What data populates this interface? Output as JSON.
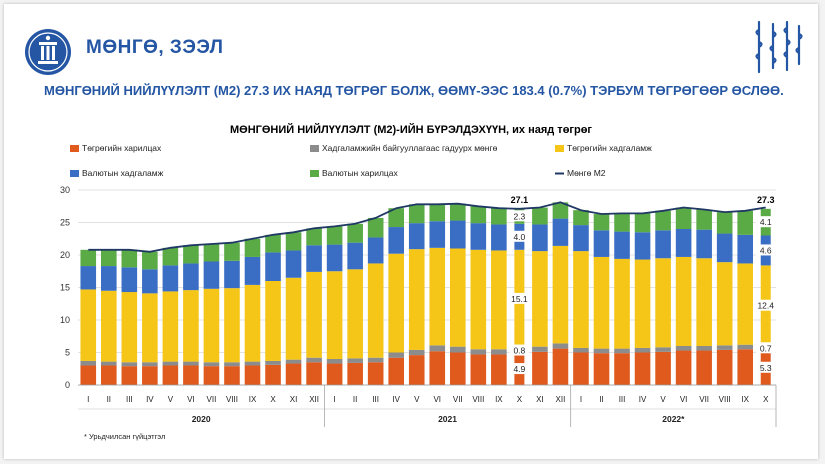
{
  "header": {
    "section_title": "МӨНГӨ, ЗЭЭЛ",
    "headline": "МӨНГӨНИЙ НИЙЛҮҮЛЭЛТ (М2) 27.3 ИХ НАЯД ТӨГРӨГ БОЛЖ, ӨӨМҮ-ЭЭС 183.4 (0.7%) ТЭРБУМ ТӨГРӨГӨӨР ӨСЛӨӨ."
  },
  "footnote": "* Урьдчилсан гүйцэтгэл",
  "colors": {
    "brand": "#2456a4",
    "currency": "#e05a1e",
    "non_bank": "#8c8c8c",
    "mnt_deposit": "#f5c518",
    "fx_deposit": "#3a6ec4",
    "fx_current": "#5aaa46",
    "m2_line": "#1f3864"
  },
  "chart_data": {
    "type": "bar",
    "stacked": true,
    "title": "МӨНГӨНИЙ НИЙЛҮҮЛЭЛТ (М2)-ИЙН БҮРЭЛДЭХҮҮН, их наяд төгрөг",
    "ylim": [
      0,
      30
    ],
    "yticks": [
      0,
      5,
      10,
      15,
      20,
      25,
      30
    ],
    "grid": true,
    "legend_position": "top",
    "categories": [
      "I",
      "II",
      "III",
      "IV",
      "V",
      "VI",
      "VII",
      "VIII",
      "IX",
      "X",
      "XI",
      "XII",
      "I",
      "II",
      "III",
      "IV",
      "V",
      "VI",
      "VII",
      "VIII",
      "IX",
      "X",
      "XI",
      "XII",
      "I",
      "II",
      "III",
      "IV",
      "V",
      "VI",
      "VII",
      "VIII",
      "IX",
      "X"
    ],
    "years": [
      {
        "label": "2020",
        "start": 0,
        "end": 11
      },
      {
        "label": "2021",
        "start": 12,
        "end": 23
      },
      {
        "label": "2022*",
        "start": 24,
        "end": 33
      }
    ],
    "series": [
      {
        "name": "Төгрөгийн харилцах",
        "color": "#e05a1e",
        "values": [
          3.0,
          3.0,
          2.9,
          2.9,
          3.0,
          3.0,
          2.9,
          2.9,
          3.0,
          3.1,
          3.3,
          3.5,
          3.3,
          3.4,
          3.5,
          4.2,
          4.6,
          5.2,
          5.0,
          4.7,
          4.7,
          4.9,
          5.1,
          5.6,
          5.0,
          4.9,
          4.9,
          5.0,
          5.1,
          5.3,
          5.3,
          5.4,
          5.5,
          5.3
        ]
      },
      {
        "name": "Хадгаламжийн байгууллагаас гадуурх мөнгө",
        "color": "#8c8c8c",
        "values": [
          0.7,
          0.6,
          0.6,
          0.6,
          0.6,
          0.6,
          0.6,
          0.6,
          0.6,
          0.6,
          0.6,
          0.7,
          0.7,
          0.7,
          0.7,
          0.8,
          0.8,
          0.9,
          0.9,
          0.8,
          0.8,
          0.8,
          0.8,
          0.8,
          0.7,
          0.7,
          0.7,
          0.7,
          0.7,
          0.7,
          0.7,
          0.7,
          0.7,
          0.7
        ]
      },
      {
        "name": "Төгрөгийн хадгаламж",
        "color": "#f5c518",
        "values": [
          11.0,
          10.9,
          10.8,
          10.6,
          10.8,
          11.0,
          11.3,
          11.4,
          11.8,
          12.3,
          12.6,
          13.2,
          13.5,
          13.7,
          14.5,
          15.2,
          15.5,
          15.0,
          15.1,
          15.3,
          15.2,
          15.1,
          14.7,
          15.0,
          14.9,
          14.1,
          13.8,
          13.6,
          13.7,
          13.7,
          13.5,
          12.8,
          12.5,
          12.4
        ]
      },
      {
        "name": "Валютын хадгаламж",
        "color": "#3a6ec4",
        "values": [
          3.6,
          3.8,
          3.8,
          3.7,
          4.0,
          4.1,
          4.2,
          4.2,
          4.3,
          4.4,
          4.2,
          4.1,
          4.1,
          4.1,
          4.0,
          4.1,
          4.0,
          4.1,
          4.3,
          4.1,
          4.0,
          4.0,
          4.1,
          4.2,
          4.0,
          4.1,
          4.2,
          4.2,
          4.3,
          4.3,
          4.4,
          4.4,
          4.4,
          4.6
        ]
      },
      {
        "name": "Валютын харилцах",
        "color": "#5aaa46",
        "values": [
          2.5,
          2.5,
          2.7,
          2.7,
          2.7,
          2.8,
          2.7,
          2.8,
          2.8,
          2.7,
          2.8,
          2.6,
          2.8,
          2.9,
          3.0,
          2.9,
          2.9,
          2.6,
          2.6,
          2.6,
          2.5,
          2.3,
          2.6,
          2.5,
          2.3,
          2.5,
          2.8,
          2.9,
          3.0,
          3.3,
          3.1,
          3.3,
          3.7,
          4.1
        ]
      }
    ],
    "line": {
      "name": "Мөнгө М2",
      "color": "#1f3864",
      "values": [
        20.8,
        20.8,
        20.8,
        20.5,
        21.1,
        21.5,
        21.7,
        21.9,
        22.5,
        23.1,
        23.5,
        24.1,
        24.4,
        24.8,
        25.7,
        27.2,
        27.8,
        27.8,
        27.9,
        27.5,
        27.2,
        27.1,
        27.3,
        28.1,
        26.9,
        26.3,
        26.4,
        26.4,
        26.8,
        27.3,
        27.0,
        26.6,
        26.8,
        27.3
      ]
    },
    "data_labels": [
      {
        "category_index": 21,
        "values": [
          "4.9",
          "0.8",
          "15.1",
          "4.0",
          "2.3"
        ],
        "total": "27.1"
      },
      {
        "category_index": 33,
        "values": [
          "5.3",
          "0.7",
          "12.4",
          "4.6",
          "4.1"
        ],
        "total": "27.3"
      }
    ]
  }
}
